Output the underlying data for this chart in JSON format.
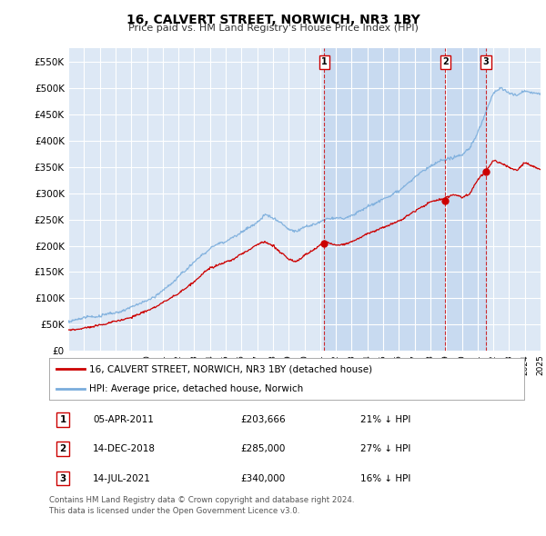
{
  "title": "16, CALVERT STREET, NORWICH, NR3 1BY",
  "subtitle": "Price paid vs. HM Land Registry's House Price Index (HPI)",
  "ylabel_ticks": [
    "£0",
    "£50K",
    "£100K",
    "£150K",
    "£200K",
    "£250K",
    "£300K",
    "£350K",
    "£400K",
    "£450K",
    "£500K",
    "£550K"
  ],
  "ytick_values": [
    0,
    50000,
    100000,
    150000,
    200000,
    250000,
    300000,
    350000,
    400000,
    450000,
    500000,
    550000
  ],
  "xlim_start": 1995,
  "xlim_end": 2025,
  "ylim_top": 575000,
  "plot_bg_color": "#dde8f5",
  "shaded_region_color": "#c8daf0",
  "grid_color": "#ffffff",
  "legend_entries": [
    "16, CALVERT STREET, NORWICH, NR3 1BY (detached house)",
    "HPI: Average price, detached house, Norwich"
  ],
  "legend_colors": [
    "#cc0000",
    "#7aaddc"
  ],
  "sale_points": [
    {
      "label": "1",
      "price": 203666,
      "year": 2011.27
    },
    {
      "label": "2",
      "price": 285000,
      "year": 2018.95
    },
    {
      "label": "3",
      "price": 340000,
      "year": 2021.54
    }
  ],
  "sale_annotations": [
    {
      "num": "1",
      "date": "05-APR-2011",
      "price": "£203,666",
      "hpi": "21% ↓ HPI"
    },
    {
      "num": "2",
      "date": "14-DEC-2018",
      "price": "£285,000",
      "hpi": "27% ↓ HPI"
    },
    {
      "num": "3",
      "date": "14-JUL-2021",
      "price": "£340,000",
      "hpi": "16% ↓ HPI"
    }
  ],
  "footer": "Contains HM Land Registry data © Crown copyright and database right 2024.\nThis data is licensed under the Open Government Licence v3.0.",
  "vline_color": "#cc0000",
  "hpi_line_color": "#7aaddc",
  "price_line_color": "#cc0000",
  "marker_color": "#cc0000"
}
